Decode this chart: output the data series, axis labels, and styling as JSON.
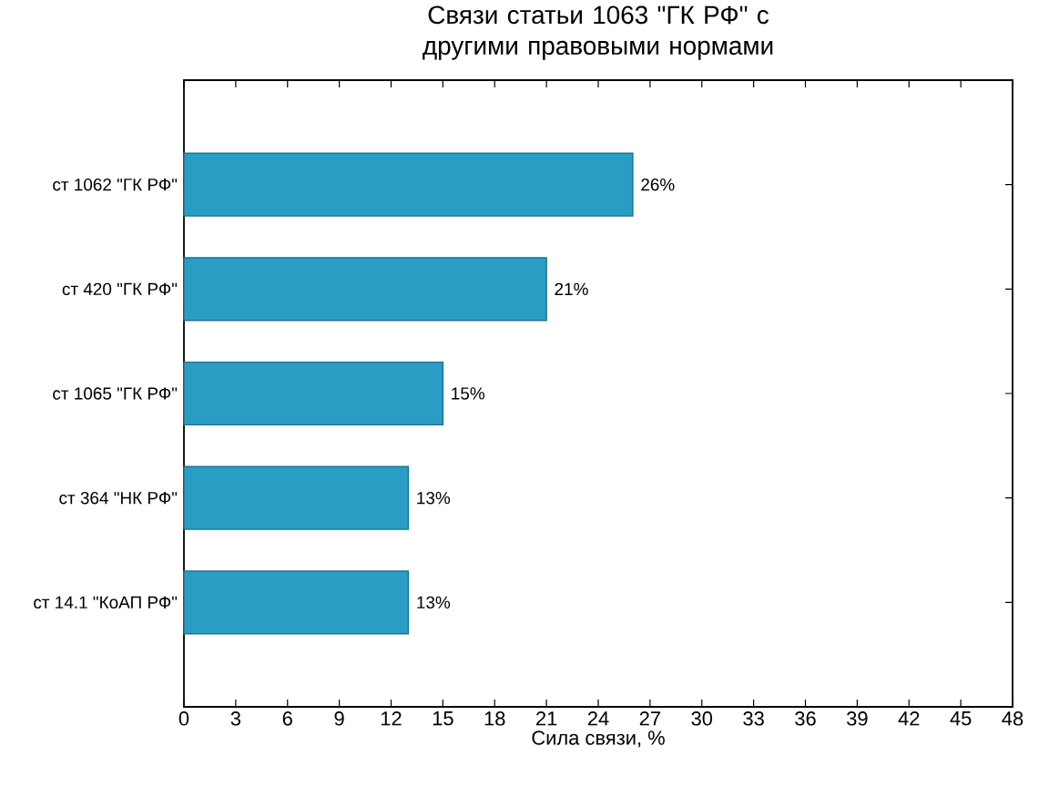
{
  "chart_data": {
    "type": "bar",
    "orientation": "horizontal",
    "title": "Связи статьи 1063 \"ГК РФ\" с другими правовыми нормами",
    "xlabel": "Сила связи, %",
    "categories": [
      "ст 1062 \"ГК РФ\"",
      "ст 420 \"ГК РФ\"",
      "ст 1065 \"ГК РФ\"",
      "ст 364 \"НК РФ\"",
      "ст 14.1 \"КоАП РФ\""
    ],
    "values": [
      26,
      21,
      15,
      13,
      13
    ],
    "value_labels": [
      "26%",
      "21%",
      "15%",
      "13%",
      "13%"
    ],
    "color": "#2a9dc4",
    "xlim": [
      0,
      48
    ],
    "xticks": [
      0,
      3,
      6,
      9,
      12,
      15,
      18,
      21,
      24,
      27,
      30,
      33,
      36,
      39,
      42,
      45,
      48
    ],
    "grid": false
  }
}
